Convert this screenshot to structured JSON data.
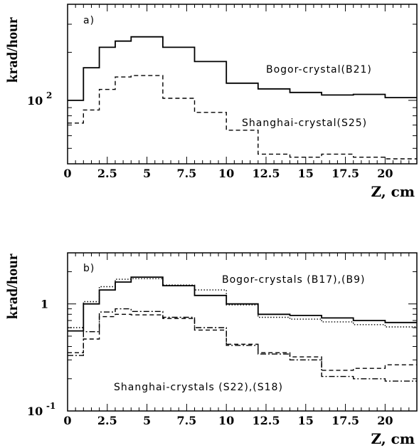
{
  "chart_data": [
    {
      "type": "line",
      "step": true,
      "panel_label": "a)",
      "xlabel": "Z, cm",
      "ylabel": "krad/hour",
      "y_scale": "log",
      "xlim": [
        0,
        22
      ],
      "ylim": [
        40,
        400
      ],
      "x_ticks": [
        "0",
        "2.5",
        "5",
        "7.5",
        "10",
        "12.5",
        "15",
        "17.5",
        "20"
      ],
      "y_ticks": [
        {
          "base": "10",
          "exp": "2",
          "value": 100
        }
      ],
      "x_edges": [
        0,
        1,
        2,
        3,
        4,
        6,
        8,
        10,
        12,
        14,
        16,
        18,
        20,
        22
      ],
      "series": [
        {
          "values": [
            100,
            160,
            215,
            235,
            250,
            215,
            175,
            128,
            118,
            112,
            108,
            109,
            104
          ],
          "style": "solid"
        },
        {
          "values": [
            72,
            87,
            117,
            140,
            143,
            103,
            84,
            65,
            46,
            44,
            46,
            44,
            43
          ],
          "style": "dashed"
        }
      ],
      "annotations": [
        "Bogor-crystal(B21)",
        "Shanghai-crystal(S25)"
      ]
    },
    {
      "type": "line",
      "step": true,
      "panel_label": "b)",
      "xlabel": "Z, cm",
      "ylabel": "krad/hour",
      "y_scale": "log",
      "xlim": [
        0,
        22
      ],
      "ylim": [
        0.1,
        3
      ],
      "x_ticks": [
        "0",
        "2.5",
        "5",
        "7.5",
        "10",
        "12.5",
        "15",
        "17.5",
        "20"
      ],
      "y_ticks": [
        {
          "base": "1",
          "exp": "",
          "value": 1
        },
        {
          "base": "10",
          "exp": "-1",
          "value": 0.1
        }
      ],
      "x_edges": [
        0,
        1,
        2,
        3,
        4,
        6,
        8,
        10,
        12,
        14,
        16,
        18,
        20,
        22
      ],
      "series": [
        {
          "values": [
            0.56,
            1.0,
            1.35,
            1.6,
            1.78,
            1.48,
            1.2,
            1.0,
            0.8,
            0.78,
            0.74,
            0.7,
            0.67
          ],
          "style": "solid"
        },
        {
          "values": [
            0.6,
            1.05,
            1.45,
            1.7,
            1.72,
            1.5,
            1.35,
            0.98,
            0.75,
            0.72,
            0.68,
            0.64,
            0.61
          ],
          "style": "dotted"
        },
        {
          "values": [
            0.35,
            0.47,
            0.76,
            0.8,
            0.79,
            0.73,
            0.57,
            0.42,
            0.35,
            0.32,
            0.24,
            0.25,
            0.27
          ],
          "style": "dashed"
        },
        {
          "values": [
            0.33,
            0.55,
            0.84,
            0.9,
            0.85,
            0.75,
            0.6,
            0.41,
            0.34,
            0.3,
            0.21,
            0.2,
            0.19
          ],
          "style": "dashdot"
        }
      ],
      "annotations": [
        "Bogor-crystals (B17),(B9)",
        "Shanghai-crystals (S22),(S18)"
      ]
    }
  ]
}
